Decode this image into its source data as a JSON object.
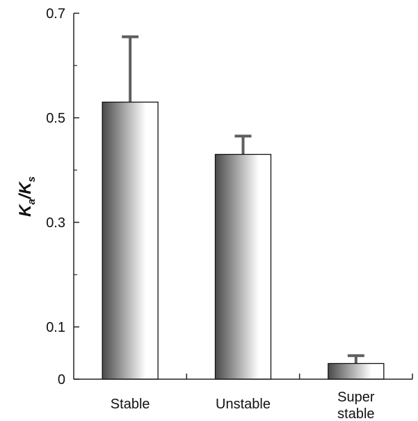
{
  "chart_data": {
    "type": "bar",
    "categories": [
      [
        "Stable"
      ],
      [
        "Unstable"
      ],
      [
        "Super",
        "stable"
      ]
    ],
    "values": [
      0.53,
      0.43,
      0.03
    ],
    "errors": [
      0.125,
      0.035,
      0.015
    ],
    "ylabel": {
      "main_1": "K",
      "sub_1": "a",
      "slash": "/",
      "main_2": "K",
      "sub_2": "s"
    },
    "ylim": [
      0,
      0.7
    ],
    "yticks": [
      {
        "value": 0,
        "label": "0"
      },
      {
        "value": 0.1,
        "label": "0.1"
      },
      {
        "value": 0.3,
        "label": "0.3"
      },
      {
        "value": 0.5,
        "label": "0.5"
      },
      {
        "value": 0.7,
        "label": "0.7"
      }
    ],
    "yminor": [
      0.2,
      0.4,
      0.6
    ],
    "grid": false,
    "legend": "none",
    "colors": {
      "bar_dark": "#4a4a4a",
      "bar_light": "#ffffff",
      "error_bar": "#5f5f5f",
      "axis": "#222222"
    }
  }
}
